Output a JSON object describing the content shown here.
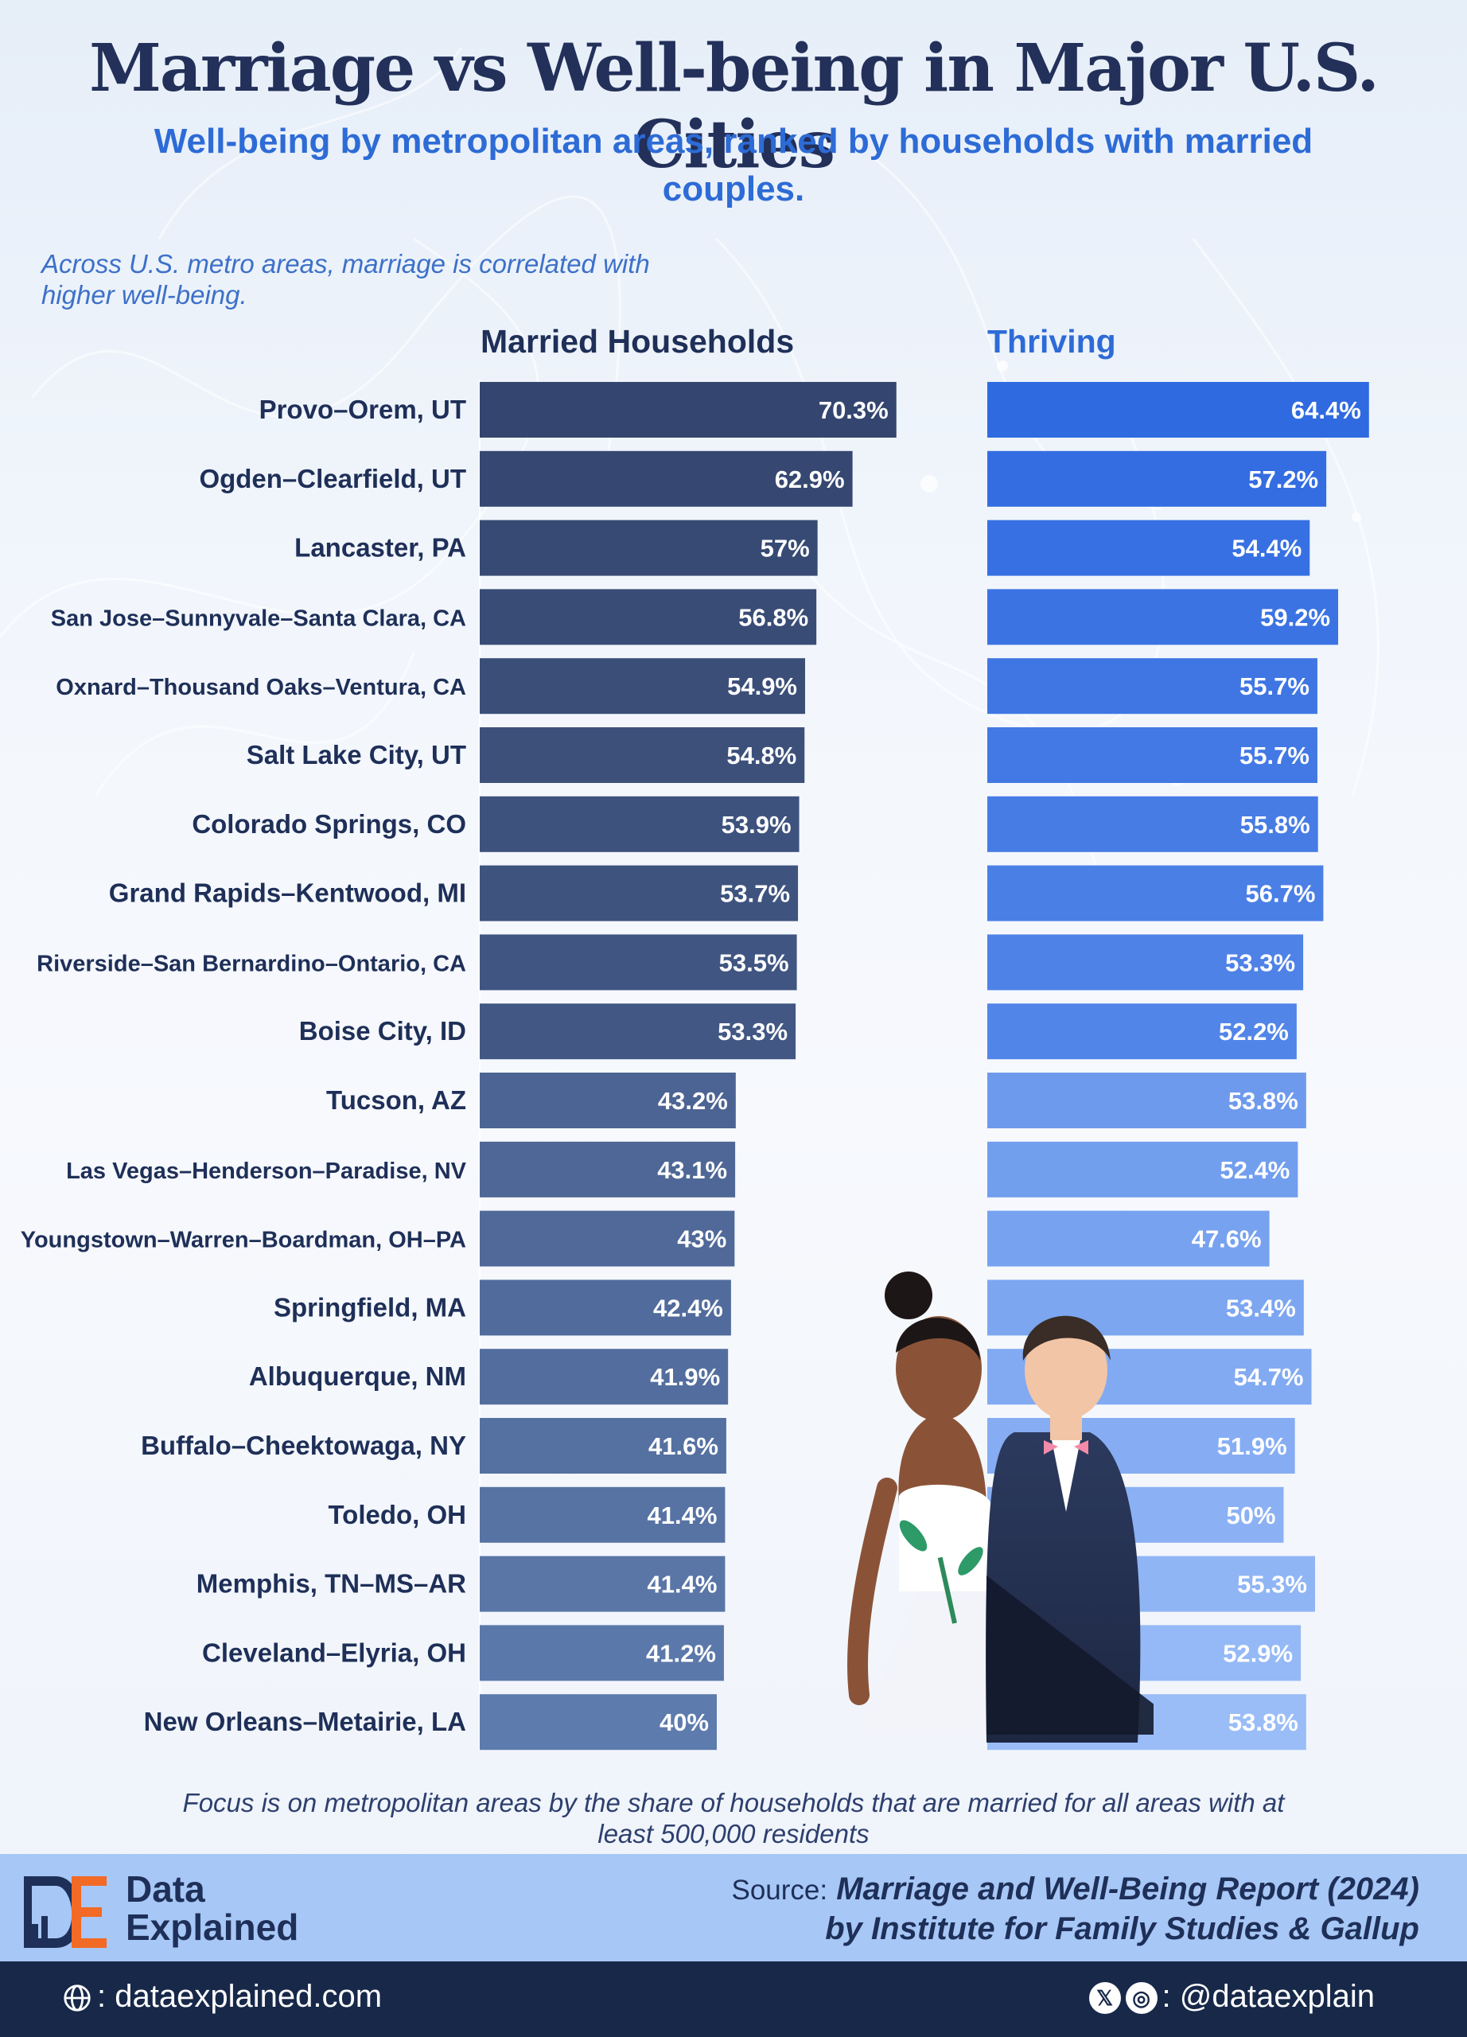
{
  "header": {
    "title": "Marriage vs Well-being in Major U.S. Cities",
    "subtitle": "Well-being by metropolitan areas, ranked by households with married couples."
  },
  "note": "Across U.S. metro areas, marriage is correlated with higher well-being.",
  "chart_data": {
    "type": "bar",
    "orientation": "horizontal",
    "categories": [
      "Provo–Orem, UT",
      "Ogden–Clearfield, UT",
      "Lancaster, PA",
      "San Jose–Sunnyvale–Santa Clara, CA",
      "Oxnard–Thousand Oaks–Ventura, CA",
      "Salt Lake City, UT",
      "Colorado Springs, CO",
      "Grand Rapids–Kentwood, MI",
      "Riverside–San Bernardino–Ontario, CA",
      "Boise City, ID",
      "Tucson, AZ",
      "Las Vegas–Henderson–Paradise, NV",
      "Youngstown–Warren–Boardman, OH–PA",
      "Springfield, MA",
      "Albuquerque, NM",
      "Buffalo–Cheektowaga, NY",
      "Toledo, OH",
      "Memphis, TN–MS–AR",
      "Cleveland–Elyria, OH",
      "New Orleans–Metairie, LA"
    ],
    "series": [
      {
        "name": "Married Households",
        "values": [
          70.3,
          62.9,
          57,
          56.8,
          54.9,
          54.8,
          53.9,
          53.7,
          53.5,
          53.3,
          43.2,
          43.1,
          43,
          42.4,
          41.9,
          41.6,
          41.4,
          41.4,
          41.2,
          40
        ],
        "labels": [
          "70.3%",
          "62.9%",
          "57%",
          "56.8%",
          "54.9%",
          "54.8%",
          "53.9%",
          "53.7%",
          "53.5%",
          "53.3%",
          "43.2%",
          "43.1%",
          "43%",
          "42.4%",
          "41.9%",
          "41.6%",
          "41.4%",
          "41.4%",
          "41.2%",
          "40%"
        ],
        "color_top": "#34466f",
        "color_bottom": "#5f7db0"
      },
      {
        "name": "Thriving",
        "values": [
          64.4,
          57.2,
          54.4,
          59.2,
          55.7,
          55.7,
          55.8,
          56.7,
          53.3,
          52.2,
          53.8,
          52.4,
          47.6,
          53.4,
          54.7,
          51.9,
          50,
          55.3,
          52.9,
          53.8
        ],
        "labels": [
          "64.4%",
          "57.2%",
          "54.4%",
          "59.2%",
          "55.7%",
          "55.7%",
          "55.8%",
          "56.7%",
          "53.3%",
          "52.2%",
          "53.8%",
          "52.4%",
          "47.6%",
          "53.4%",
          "54.7%",
          "51.9%",
          "50%",
          "55.3%",
          "52.9%",
          "53.8%"
        ],
        "color_top": "#2f6ae0",
        "color_bottom": "#9fc1f8"
      }
    ],
    "highlight_top_n": 10,
    "xlim": [
      0,
      100
    ]
  },
  "footnote": "Focus is on metropolitan areas by the share of households that are married for all areas with at least 500,000 residents",
  "footer": {
    "brand_line1": "Data",
    "brand_line2": "Explained",
    "source_label": "Source:",
    "source_title": "Marriage and Well-Being Report (2024)",
    "source_org": "by Institute for Family Studies & Gallup",
    "website": ": dataexplained.com",
    "handle": ": @dataexplain",
    "x_icon_glyph": "𝕏",
    "instagram_icon_glyph": "◎"
  }
}
